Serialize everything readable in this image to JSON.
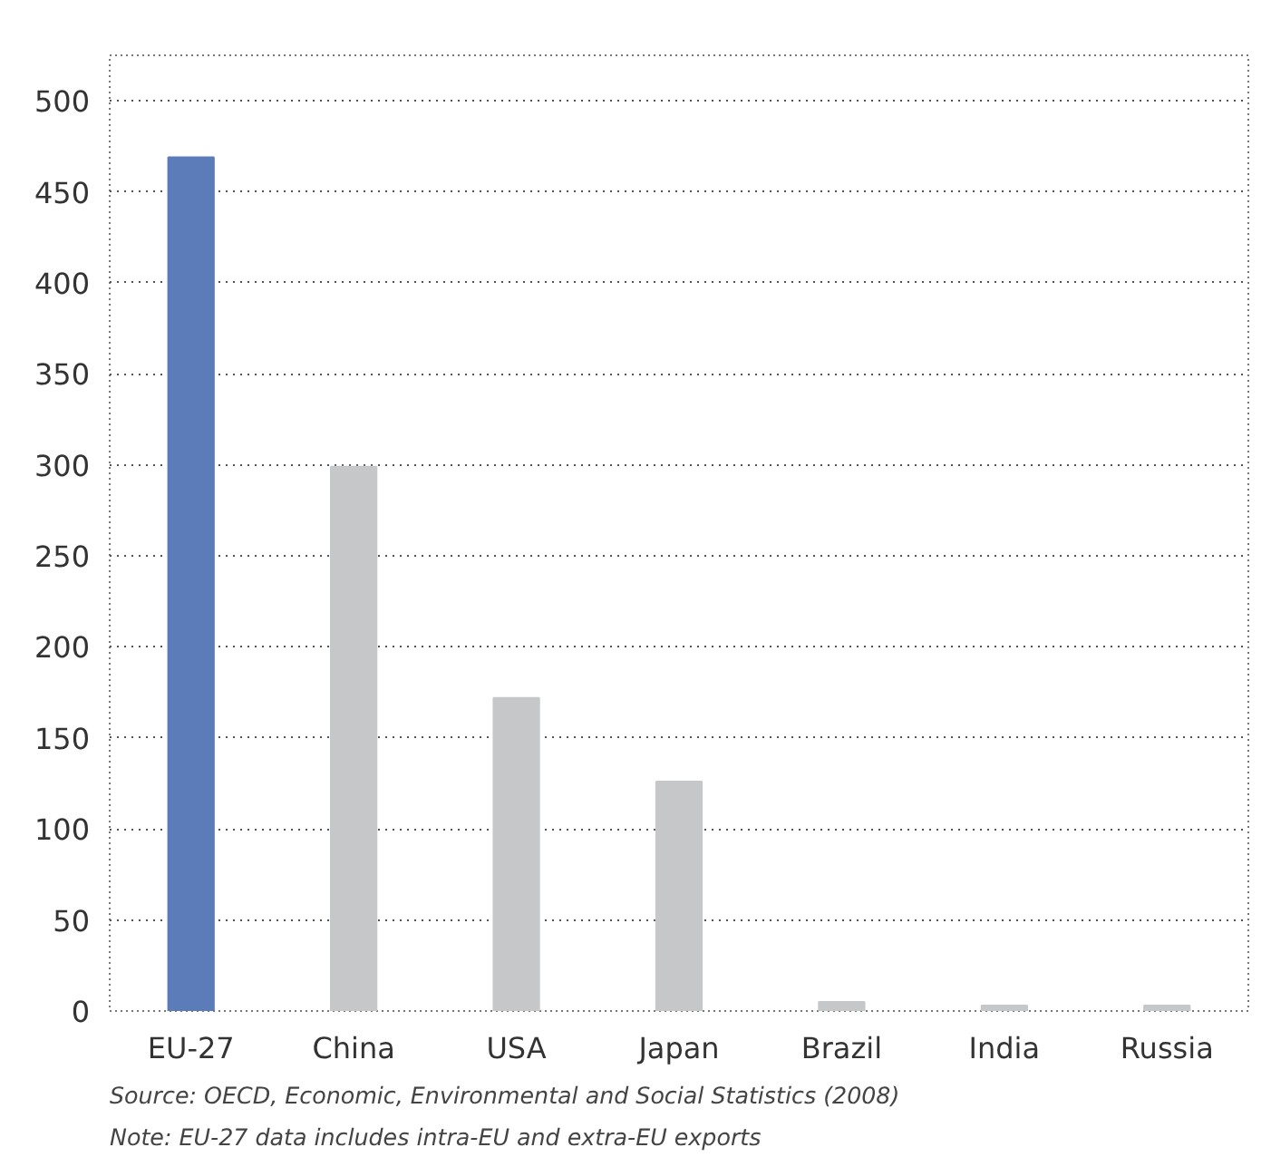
{
  "chart_data": {
    "type": "bar",
    "categories": [
      "EU-27",
      "China",
      "USA",
      "Japan",
      "Brazil",
      "India",
      "Russia"
    ],
    "values": [
      469,
      299,
      172,
      126,
      5,
      3,
      3
    ],
    "colors": [
      "#5b7bb9",
      "#c6c7c9",
      "#c6c7c9",
      "#c6c7c9",
      "#c6c7c9",
      "#c6c7c9",
      "#c6c7c9"
    ],
    "ylim": [
      0,
      525
    ],
    "yticks": [
      0,
      50,
      100,
      150,
      200,
      250,
      300,
      350,
      400,
      450,
      500
    ],
    "grid": "y",
    "annotations": [
      "Source: OECD,  Economic, Environmental and Social Statistics (2008)",
      "Note: EU-27 data includes intra-EU and extra-EU exports"
    ]
  }
}
